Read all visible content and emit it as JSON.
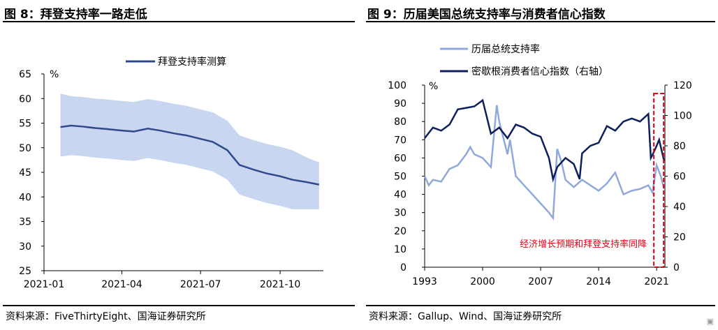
{
  "left": {
    "title": "图 8：拜登支持率一路走低",
    "source": "资料来源：FiveThirtyEight、国海证券研究所",
    "chart_data": {
      "type": "line",
      "unit_label": "%",
      "ylim": [
        25,
        65
      ],
      "yticks": [
        "25",
        "30",
        "35",
        "40",
        "45",
        "50",
        "55",
        "60",
        "65"
      ],
      "xticks": [
        "2021-01",
        "2021-04",
        "2021-07",
        "2021-10"
      ],
      "legend": "拜登支持率测算",
      "legend_position": "top-center",
      "colors": {
        "line": "#2e4a8c",
        "band": "#c9d6ef"
      },
      "series": [
        {
          "name": "拜登支持率测算",
          "x": [
            "2021-01-20",
            "2021-02-01",
            "2021-02-15",
            "2021-03-01",
            "2021-03-15",
            "2021-04-01",
            "2021-04-15",
            "2021-05-01",
            "2021-05-15",
            "2021-06-01",
            "2021-06-15",
            "2021-07-01",
            "2021-07-15",
            "2021-08-01",
            "2021-08-15",
            "2021-09-01",
            "2021-09-15",
            "2021-10-01",
            "2021-10-15",
            "2021-11-01",
            "2021-11-15"
          ],
          "values": [
            54.2,
            54.5,
            54.3,
            54.0,
            53.8,
            53.5,
            53.3,
            53.9,
            53.5,
            52.9,
            52.5,
            51.8,
            51.2,
            49.5,
            46.5,
            45.5,
            44.8,
            44.2,
            43.5,
            43.0,
            42.5
          ],
          "band_low": [
            48.2,
            48.5,
            48.3,
            48.0,
            47.8,
            47.5,
            47.3,
            47.9,
            47.5,
            46.9,
            46.5,
            45.8,
            45.2,
            43.5,
            40.5,
            39.5,
            38.8,
            38.2,
            37.5,
            37.5,
            37.5
          ],
          "band_high": [
            61.0,
            60.5,
            60.3,
            60.0,
            59.8,
            59.5,
            59.3,
            59.9,
            59.5,
            58.9,
            58.5,
            57.8,
            57.2,
            55.5,
            52.5,
            51.5,
            50.8,
            50.2,
            49.5,
            48.0,
            47.0
          ]
        }
      ]
    }
  },
  "right": {
    "title": "图 9：历届美国总统支持率与消费者信心指数",
    "source": "资料来源：Gallup、Wind、国海证券研究所",
    "chart_data": {
      "type": "line",
      "unit_label": "%",
      "ylim": [
        0,
        100
      ],
      "yticks": [
        "0",
        "10",
        "20",
        "30",
        "40",
        "50",
        "60",
        "70",
        "80",
        "90",
        "100"
      ],
      "y2lim": [
        0,
        120
      ],
      "y2ticks": [
        "0",
        "20",
        "40",
        "60",
        "80",
        "100",
        "120"
      ],
      "xticks": [
        "1993",
        "2000",
        "2007",
        "2014",
        "2021"
      ],
      "legend_position": "top-left",
      "annotation": "经济增长预期和拜登支持率同降",
      "colors": {
        "approval": "#8fa9dc",
        "sentiment": "#0d1f5c",
        "annotation": "#e60012"
      },
      "series": [
        {
          "name": "历届总统支持率",
          "axis": "left",
          "x": [
            1993.0,
            1993.5,
            1994.0,
            1995.0,
            1996.0,
            1997.0,
            1998.0,
            1998.5,
            1999.0,
            2000.0,
            2001.0,
            2001.7,
            2002.0,
            2003.0,
            2003.3,
            2004.0,
            2005.0,
            2006.0,
            2007.0,
            2008.0,
            2008.5,
            2009.0,
            2009.5,
            2010.0,
            2011.0,
            2012.0,
            2013.0,
            2014.0,
            2015.0,
            2016.0,
            2017.0,
            2018.0,
            2019.0,
            2020.0,
            2020.5,
            2021.0,
            2021.5,
            2021.9
          ],
          "values": [
            50,
            45,
            48,
            47,
            54,
            56,
            62,
            66,
            62,
            60,
            55,
            89,
            80,
            62,
            70,
            50,
            45,
            40,
            35,
            30,
            27,
            65,
            58,
            48,
            44,
            48,
            45,
            42,
            46,
            52,
            40,
            42,
            43,
            45,
            41,
            56,
            50,
            43
          ]
        },
        {
          "name": "密歇根消费者信心指数（右轴）",
          "axis": "right",
          "x": [
            1993.0,
            1994.0,
            1995.0,
            1996.0,
            1997.0,
            1998.0,
            1999.0,
            2000.0,
            2001.0,
            2002.0,
            2003.0,
            2004.0,
            2005.0,
            2006.0,
            2007.0,
            2008.0,
            2008.5,
            2009.0,
            2010.0,
            2011.0,
            2011.7,
            2012.0,
            2013.0,
            2014.0,
            2015.0,
            2016.0,
            2017.0,
            2018.0,
            2019.0,
            2020.0,
            2020.3,
            2020.5,
            2021.0,
            2021.3,
            2021.9
          ],
          "values": [
            85,
            92,
            90,
            94,
            104,
            105,
            106,
            110,
            88,
            92,
            85,
            94,
            92,
            88,
            86,
            72,
            58,
            66,
            72,
            68,
            58,
            75,
            80,
            82,
            93,
            90,
            96,
            98,
            96,
            101,
            72,
            74,
            80,
            84,
            70
          ]
        }
      ]
    }
  }
}
